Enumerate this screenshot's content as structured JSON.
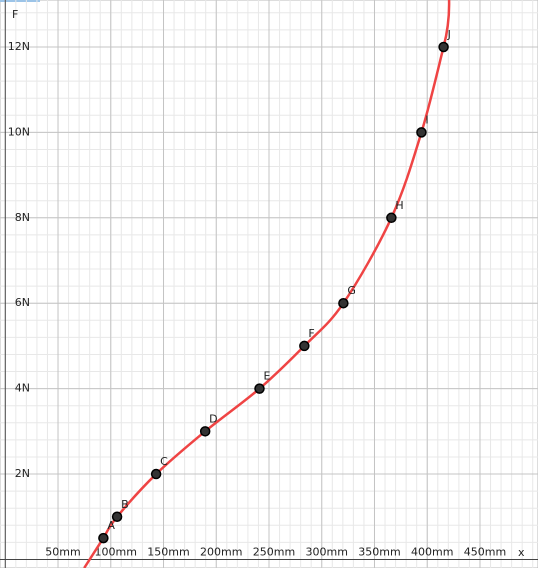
{
  "chart_data": {
    "type": "line",
    "x_label": "x",
    "y_label": "F",
    "point_labels": [
      "A",
      "B",
      "C",
      "D",
      "E",
      "F",
      "G",
      "H",
      "I",
      "J"
    ],
    "x": [
      93,
      106,
      143,
      189.5,
      241,
      283.5,
      320.5,
      366,
      394.5,
      415.5
    ],
    "values": [
      0.5,
      1,
      2,
      3,
      4,
      5,
      6,
      8,
      10,
      12
    ],
    "color": "#ef4444",
    "point_color": "#333333",
    "xlim": [
      -5,
      505
    ],
    "ylim": [
      -0.2,
      13.1
    ],
    "xticks": [
      {
        "value": 50,
        "label": "50mm"
      },
      {
        "value": 100,
        "label": "100mm"
      },
      {
        "value": 150,
        "label": "150mm"
      },
      {
        "value": 200,
        "label": "200mm"
      },
      {
        "value": 250,
        "label": "250mm"
      },
      {
        "value": 300,
        "label": "300mm"
      },
      {
        "value": 350,
        "label": "350mm"
      },
      {
        "value": 400,
        "label": "400mm"
      },
      {
        "value": 450,
        "label": "450mm"
      }
    ],
    "yticks": [
      {
        "value": 2,
        "label": "2N"
      },
      {
        "value": 4,
        "label": "4N"
      },
      {
        "value": 6,
        "label": "6N"
      },
      {
        "value": 8,
        "label": "8N"
      },
      {
        "value": 10,
        "label": "10N"
      },
      {
        "value": 12,
        "label": "12N"
      }
    ],
    "grid": true
  }
}
